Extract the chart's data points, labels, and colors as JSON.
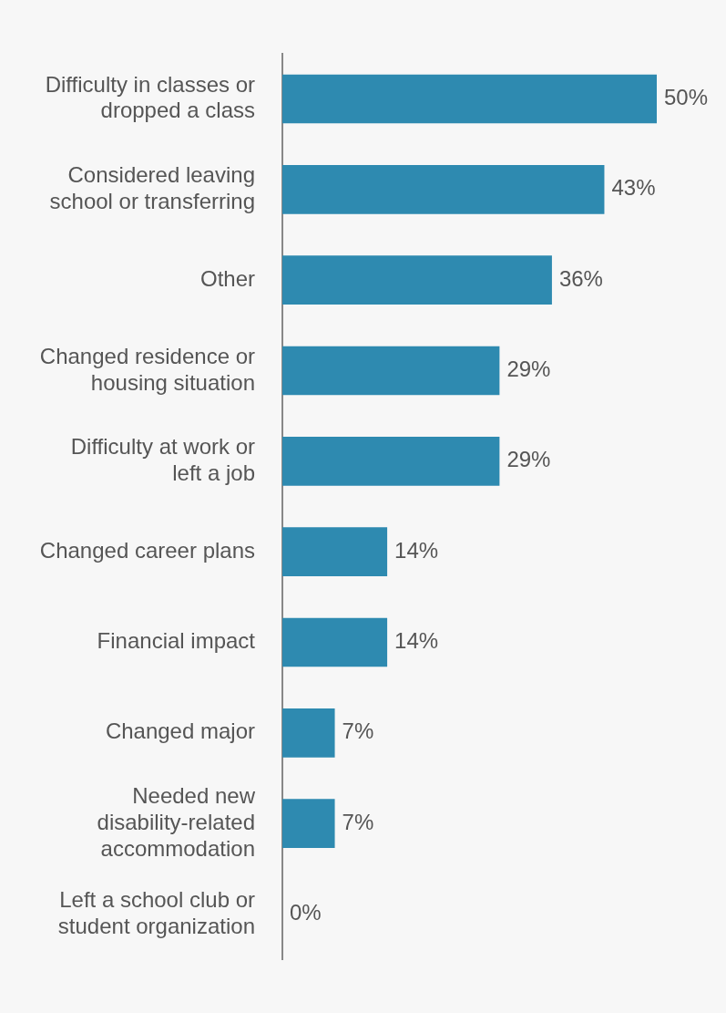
{
  "chart_data": {
    "type": "bar",
    "orientation": "horizontal",
    "categories": [
      "Difficulty in classes or dropped a class",
      "Considered leaving school or transferring",
      "Other",
      "Changed residence or housing situation",
      "Difficulty at work or left a job",
      "Changed career plans",
      "Financial impact",
      "Changed major",
      "Needed new disability-related accommodation",
      "Left a school club or student organization"
    ],
    "values": [
      50,
      43,
      36,
      29,
      29,
      14,
      14,
      7,
      7,
      0
    ],
    "value_labels": [
      "50%",
      "43%",
      "36%",
      "29%",
      "29%",
      "14%",
      "14%",
      "7%",
      "7%",
      "0%"
    ],
    "color": "#2e8ab0",
    "grid": false,
    "legend": false
  }
}
